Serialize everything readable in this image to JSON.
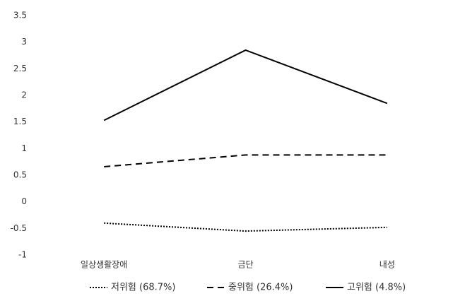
{
  "chart_data": {
    "type": "line",
    "categories": [
      "일상생활장애",
      "금단",
      "내성"
    ],
    "series": [
      {
        "name": "저위험 (68.7%)",
        "color": "#000000",
        "dash": "dotted",
        "values": [
          -0.4,
          -0.55,
          -0.48
        ]
      },
      {
        "name": "중위험 (26.4%)",
        "color": "#000000",
        "dash": "dashed",
        "values": [
          0.66,
          0.88,
          0.88
        ]
      },
      {
        "name": "고위험 (4.8%)",
        "color": "#000000",
        "dash": "solid",
        "values": [
          1.53,
          2.85,
          1.85
        ]
      }
    ],
    "ylim": [
      -1,
      3.5
    ],
    "yticks": [
      -1,
      -0.5,
      0,
      0.5,
      1,
      1.5,
      2,
      2.5,
      3,
      3.5
    ],
    "grid": false,
    "legend": "bottom"
  }
}
